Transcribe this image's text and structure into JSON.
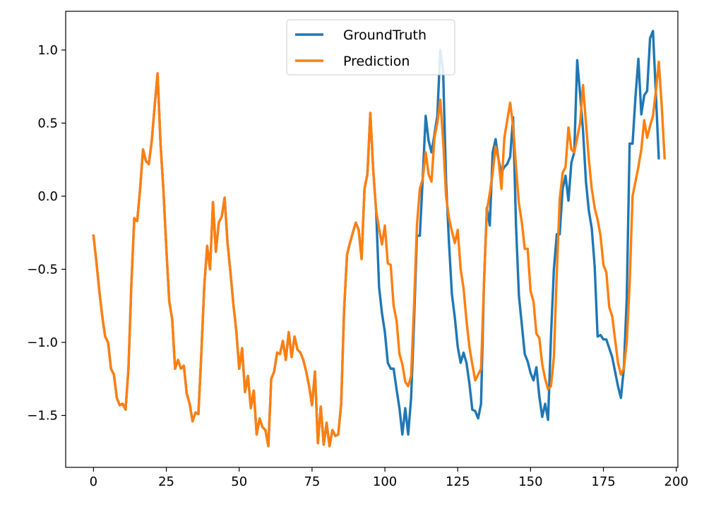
{
  "chart_data": {
    "type": "line",
    "title": "",
    "xlabel": "",
    "ylabel": "",
    "xlim": [
      -9.55,
      200.55
    ],
    "ylim": [
      -1.855,
      1.265
    ],
    "xticks": [
      0,
      25,
      50,
      75,
      100,
      125,
      150,
      175,
      200
    ],
    "xtick_labels": [
      "0",
      "25",
      "50",
      "75",
      "100",
      "125",
      "150",
      "175",
      "200"
    ],
    "yticks": [
      -1.5,
      -1.0,
      -0.5,
      0.0,
      0.5,
      1.0
    ],
    "ytick_labels": [
      "−1.5",
      "−1.0",
      "−0.5",
      "0.0",
      "0.5",
      "1.0"
    ],
    "grid": false,
    "legend": {
      "placement": "upper center",
      "entries": [
        {
          "label": "GroundTruth",
          "color": "#1f77b4"
        },
        {
          "label": "Prediction",
          "color": "#ff7f0e"
        }
      ]
    },
    "series": [
      {
        "name": "GroundTruth",
        "color": "#1f77b4",
        "x_start": 0,
        "values": [
          -0.27,
          -0.45,
          -0.65,
          -0.82,
          -0.96,
          -1.0,
          -1.18,
          -1.22,
          -1.38,
          -1.43,
          -1.42,
          -1.46,
          -1.18,
          -0.6,
          -0.15,
          -0.17,
          0.05,
          0.32,
          0.24,
          0.22,
          0.38,
          0.62,
          0.84,
          0.36,
          0.04,
          -0.36,
          -0.72,
          -0.84,
          -1.18,
          -1.12,
          -1.18,
          -1.16,
          -1.35,
          -1.42,
          -1.54,
          -1.48,
          -1.49,
          -1.08,
          -0.62,
          -0.34,
          -0.5,
          -0.04,
          -0.38,
          -0.18,
          -0.14,
          -0.01,
          -0.32,
          -0.52,
          -0.74,
          -0.92,
          -1.18,
          -1.04,
          -1.34,
          -1.23,
          -1.45,
          -1.33,
          -1.63,
          -1.52,
          -1.58,
          -1.6,
          -1.71,
          -1.25,
          -1.2,
          -1.07,
          -1.08,
          -0.99,
          -1.12,
          -0.93,
          -1.1,
          -0.96,
          -1.05,
          -1.07,
          -1.12,
          -1.2,
          -1.3,
          -1.43,
          -1.2,
          -1.69,
          -1.44,
          -1.7,
          -1.55,
          -1.71,
          -1.6,
          -1.64,
          -1.63,
          -1.42,
          -0.78,
          -0.4,
          -0.32,
          -0.25,
          -0.18,
          -0.23,
          -0.43,
          0.05,
          0.15,
          0.57,
          0.18,
          -0.1,
          -0.62,
          -0.8,
          -0.93,
          -1.14,
          -1.18,
          -1.18,
          -1.32,
          -1.45,
          -1.63,
          -1.45,
          -1.63,
          -1.38,
          -0.86,
          -0.27,
          -0.27,
          0.13,
          0.55,
          0.38,
          0.3,
          0.42,
          0.55,
          1.0,
          0.85,
          0.1,
          -0.32,
          -0.67,
          -0.83,
          -1.03,
          -1.14,
          -1.07,
          -1.14,
          -1.28,
          -1.46,
          -1.47,
          -1.52,
          -1.42,
          -0.6,
          -0.08,
          -0.2,
          0.3,
          0.39,
          0.25,
          0.16,
          0.2,
          0.22,
          0.27,
          0.54,
          -0.2,
          -0.68,
          -0.88,
          -1.08,
          -1.13,
          -1.21,
          -1.26,
          -1.17,
          -1.37,
          -1.51,
          -1.42,
          -1.53,
          -0.96,
          -0.5,
          -0.26,
          -0.26,
          0.05,
          0.14,
          -0.03,
          0.23,
          0.3,
          0.93,
          0.7,
          0.45,
          0.1,
          -0.1,
          -0.22,
          -0.48,
          -0.96,
          -0.95,
          -0.98,
          -0.98,
          -1.04,
          -1.1,
          -1.2,
          -1.3,
          -1.38,
          -1.18,
          -0.7,
          0.36,
          0.36,
          0.68,
          0.94,
          0.56,
          0.69,
          0.72,
          1.08,
          1.13,
          0.7,
          0.26
        ]
      },
      {
        "name": "Prediction",
        "color": "#ff7f0e",
        "x_start": 0,
        "values": [
          -0.27,
          -0.45,
          -0.65,
          -0.82,
          -0.96,
          -1.0,
          -1.18,
          -1.22,
          -1.38,
          -1.43,
          -1.42,
          -1.46,
          -1.18,
          -0.6,
          -0.15,
          -0.17,
          0.05,
          0.32,
          0.24,
          0.22,
          0.38,
          0.62,
          0.84,
          0.36,
          0.04,
          -0.36,
          -0.72,
          -0.84,
          -1.18,
          -1.12,
          -1.18,
          -1.16,
          -1.35,
          -1.42,
          -1.54,
          -1.48,
          -1.49,
          -1.08,
          -0.62,
          -0.34,
          -0.5,
          -0.04,
          -0.38,
          -0.18,
          -0.14,
          -0.01,
          -0.32,
          -0.52,
          -0.74,
          -0.92,
          -1.18,
          -1.04,
          -1.34,
          -1.23,
          -1.45,
          -1.33,
          -1.63,
          -1.52,
          -1.58,
          -1.6,
          -1.71,
          -1.25,
          -1.2,
          -1.07,
          -1.08,
          -0.99,
          -1.12,
          -0.93,
          -1.1,
          -0.96,
          -1.05,
          -1.07,
          -1.12,
          -1.2,
          -1.3,
          -1.43,
          -1.2,
          -1.69,
          -1.44,
          -1.7,
          -1.55,
          -1.71,
          -1.6,
          -1.64,
          -1.63,
          -1.42,
          -0.78,
          -0.4,
          -0.32,
          -0.25,
          -0.18,
          -0.23,
          -0.43,
          0.05,
          0.15,
          0.57,
          0.18,
          -0.1,
          -0.22,
          -0.33,
          -0.2,
          -0.46,
          -0.47,
          -0.75,
          -0.85,
          -1.08,
          -1.15,
          -1.27,
          -1.3,
          -1.23,
          -0.75,
          -0.2,
          0.05,
          0.12,
          0.3,
          0.15,
          0.1,
          0.4,
          0.5,
          0.66,
          0.38,
          0.0,
          -0.15,
          -0.24,
          -0.32,
          -0.23,
          -0.5,
          -0.63,
          -0.85,
          -1.03,
          -1.15,
          -1.26,
          -1.22,
          -1.18,
          -0.6,
          -0.1,
          0.02,
          0.16,
          0.34,
          0.25,
          0.05,
          0.4,
          0.52,
          0.64,
          0.48,
          0.2,
          -0.05,
          -0.18,
          -0.36,
          -0.36,
          -0.65,
          -0.72,
          -0.94,
          -0.97,
          -1.15,
          -1.25,
          -1.32,
          -1.3,
          -1.1,
          -0.52,
          -0.02,
          0.16,
          0.2,
          0.47,
          0.32,
          0.3,
          0.4,
          0.5,
          0.76,
          0.5,
          0.25,
          0.05,
          -0.08,
          -0.16,
          -0.27,
          -0.47,
          -0.52,
          -0.76,
          -0.82,
          -0.98,
          -1.14,
          -1.22,
          -1.18,
          -1.0,
          -0.6,
          0.0,
          0.1,
          0.2,
          0.32,
          0.52,
          0.4,
          0.48,
          0.55,
          0.72,
          0.92,
          0.62,
          0.26
        ]
      }
    ]
  }
}
